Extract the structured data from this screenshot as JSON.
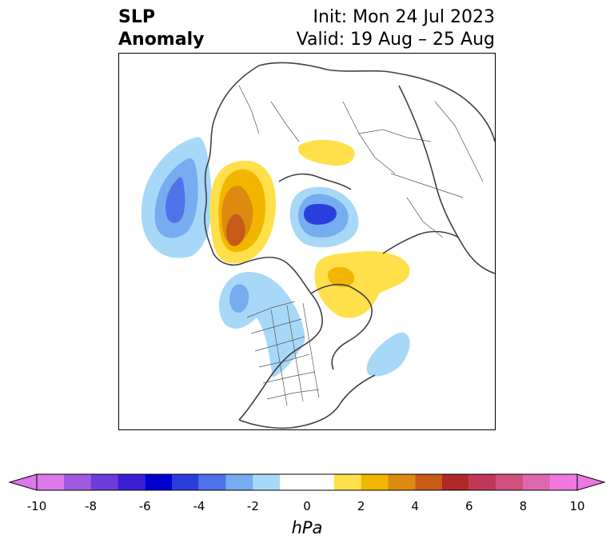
{
  "title": {
    "left_line1": "SLP",
    "left_line2": "Anomaly",
    "right_line1": "Init: Mon 24 Jul 2023",
    "right_line2": "Valid: 19 Aug – 25 Aug"
  },
  "colorbar": {
    "units": "hPa",
    "ticks": [
      "-10",
      "-8",
      "-6",
      "-4",
      "-2",
      "0",
      "2",
      "4",
      "6",
      "8",
      "10"
    ],
    "bins": [
      {
        "min": -10,
        "max": -9,
        "color": "#dc78e8"
      },
      {
        "min": -9,
        "max": -8,
        "color": "#a05ae0"
      },
      {
        "min": -8,
        "max": -7,
        "color": "#6e3cd8"
      },
      {
        "min": -7,
        "max": -6,
        "color": "#3a1ed6"
      },
      {
        "min": -6,
        "max": -5,
        "color": "#0000d0"
      },
      {
        "min": -5,
        "max": -4,
        "color": "#2a3ede"
      },
      {
        "min": -4,
        "max": -3,
        "color": "#4f72e8"
      },
      {
        "min": -3,
        "max": -2,
        "color": "#76acf0"
      },
      {
        "min": -2,
        "max": -1,
        "color": "#a8d8f8"
      },
      {
        "min": -1,
        "max": 1,
        "color": "#ffffff"
      },
      {
        "min": 1,
        "max": 2,
        "color": "#ffe04a"
      },
      {
        "min": 2,
        "max": 3,
        "color": "#f2b600"
      },
      {
        "min": 3,
        "max": 4,
        "color": "#de8a10"
      },
      {
        "min": 4,
        "max": 5,
        "color": "#c85a18"
      },
      {
        "min": 5,
        "max": 6,
        "color": "#b02828"
      },
      {
        "min": 6,
        "max": 7,
        "color": "#c03858"
      },
      {
        "min": 7,
        "max": 8,
        "color": "#d05080"
      },
      {
        "min": 8,
        "max": 9,
        "color": "#de68b0"
      },
      {
        "min": 9,
        "max": 10,
        "color": "#ec78e0"
      }
    ],
    "under_color": "#dc78e8",
    "over_color": "#ec78e0"
  },
  "map": {
    "projection": "north-polar-stereographic",
    "features": [
      "coastlines",
      "country-borders",
      "us-state-borders"
    ]
  }
}
